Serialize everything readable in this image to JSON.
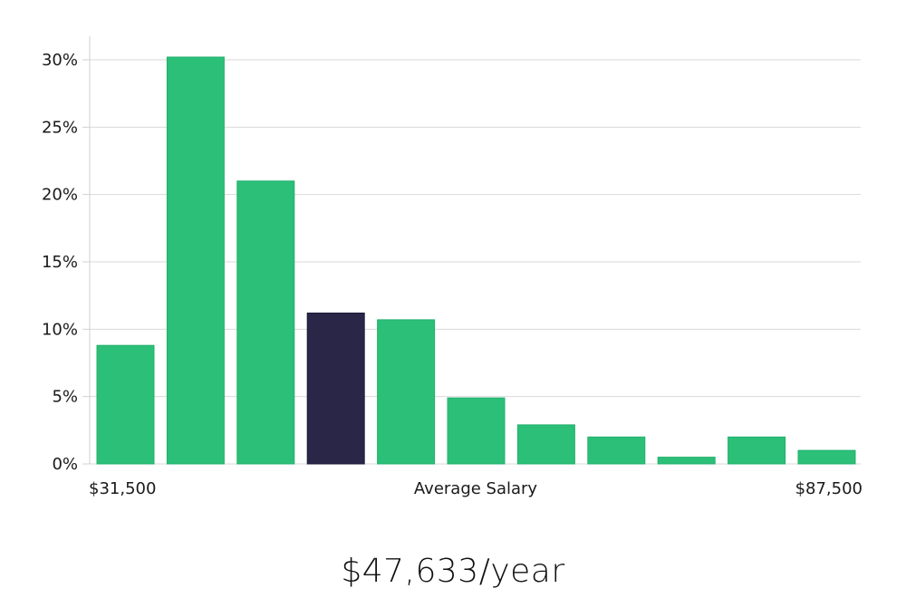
{
  "chart_data": {
    "type": "bar",
    "title": "",
    "xlabel": "Average Salary",
    "ylabel": "",
    "x_range_labels": [
      "$31,500",
      "$87,500"
    ],
    "ylim": [
      0,
      32
    ],
    "yticks": [
      0,
      5,
      10,
      15,
      20,
      25,
      30
    ],
    "ytick_labels": [
      "0%",
      "5%",
      "10%",
      "15%",
      "20%",
      "25%",
      "30%"
    ],
    "grid": true,
    "values": [
      8.8,
      30.2,
      21.0,
      11.2,
      10.7,
      4.9,
      2.9,
      2.0,
      0.5,
      2.0,
      1.0
    ],
    "highlight_index": 3,
    "colors": {
      "bar": "#2bbf78",
      "highlight": "#2a2647",
      "grid": "#d9d9d9",
      "axis": "#d0d0d0"
    }
  },
  "headline": {
    "salary": "$47,633/year"
  }
}
